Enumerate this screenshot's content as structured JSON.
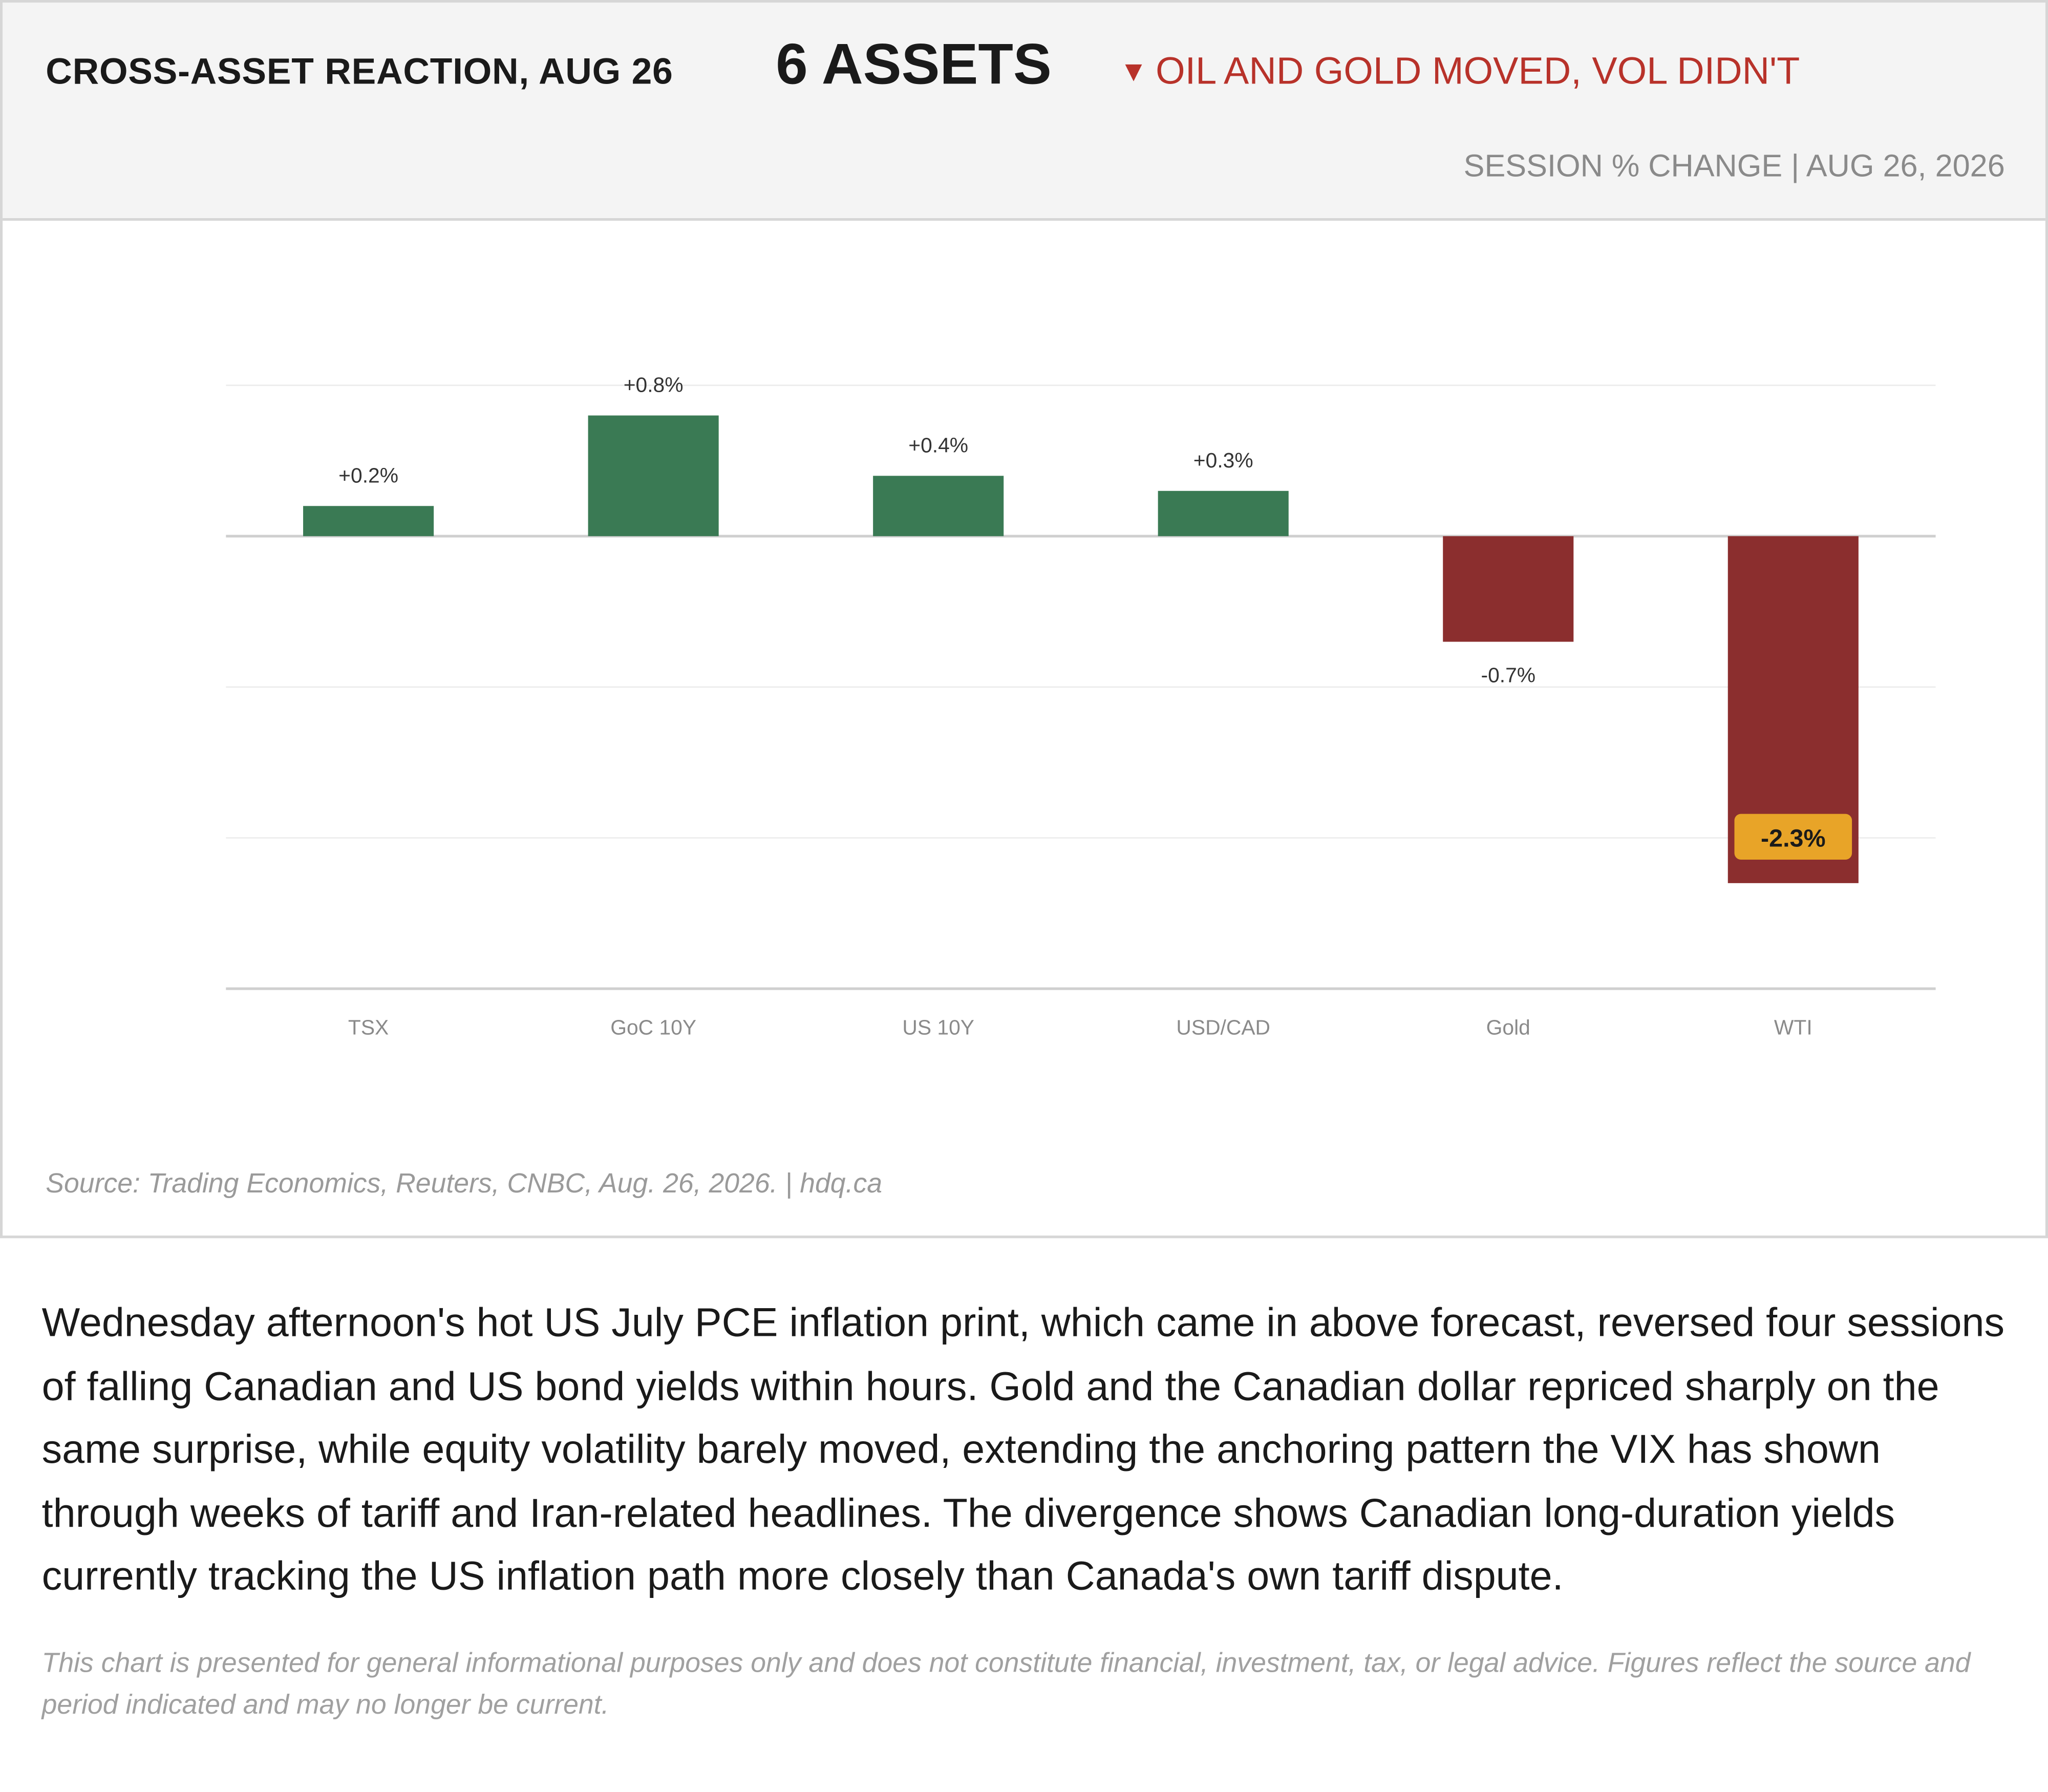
{
  "header": {
    "kicker": "CROSS-ASSET REACTION, AUG 26",
    "count_label": "6 ASSETS",
    "alert_icon": "down-triangle-icon",
    "alert_text": "OIL AND GOLD MOVED, VOL DIDN'T",
    "subtitle": "SESSION % CHANGE  |  AUG 26, 2026"
  },
  "chart_data": {
    "type": "bar",
    "categories": [
      "TSX",
      "GoC 10Y",
      "US 10Y",
      "USD/CAD",
      "Gold",
      "WTI"
    ],
    "values": [
      0.2,
      0.8,
      0.4,
      0.3,
      -0.7,
      -2.3
    ],
    "labels": [
      "+0.2%",
      "+0.8%",
      "+0.4%",
      "+0.3%",
      "-0.7%",
      "-2.3%"
    ],
    "highlight_index": 5,
    "ylim": [
      -3,
      1
    ],
    "grid": true,
    "title": "",
    "xlabel": "",
    "ylabel": "",
    "colors": {
      "positive": "#3a7a54",
      "negative": "#8b2e2e",
      "highlight": "#e8a428",
      "grid": "#ececec",
      "zero_line": "#cfcfcf"
    }
  },
  "source": "Source: Trading Economics, Reuters, CNBC, Aug. 26, 2026.  |  hdq.ca",
  "body_text": "Wednesday afternoon's hot US July PCE inflation print, which came in above forecast, reversed four sessions of falling Canadian and US bond yields within hours. Gold and the Canadian dollar repriced sharply on the same surprise, while equity volatility barely moved, extending the anchoring pattern the VIX has shown through weeks of tariff and Iran-related headlines. The divergence shows Canadian long-duration yields currently tracking the US inflation path more closely than Canada's own tariff dispute.",
  "disclaimer": "This chart is presented for general informational purposes only and does not constitute financial, investment, tax, or legal advice. Figures reflect the source and period indicated and may no longer be current."
}
